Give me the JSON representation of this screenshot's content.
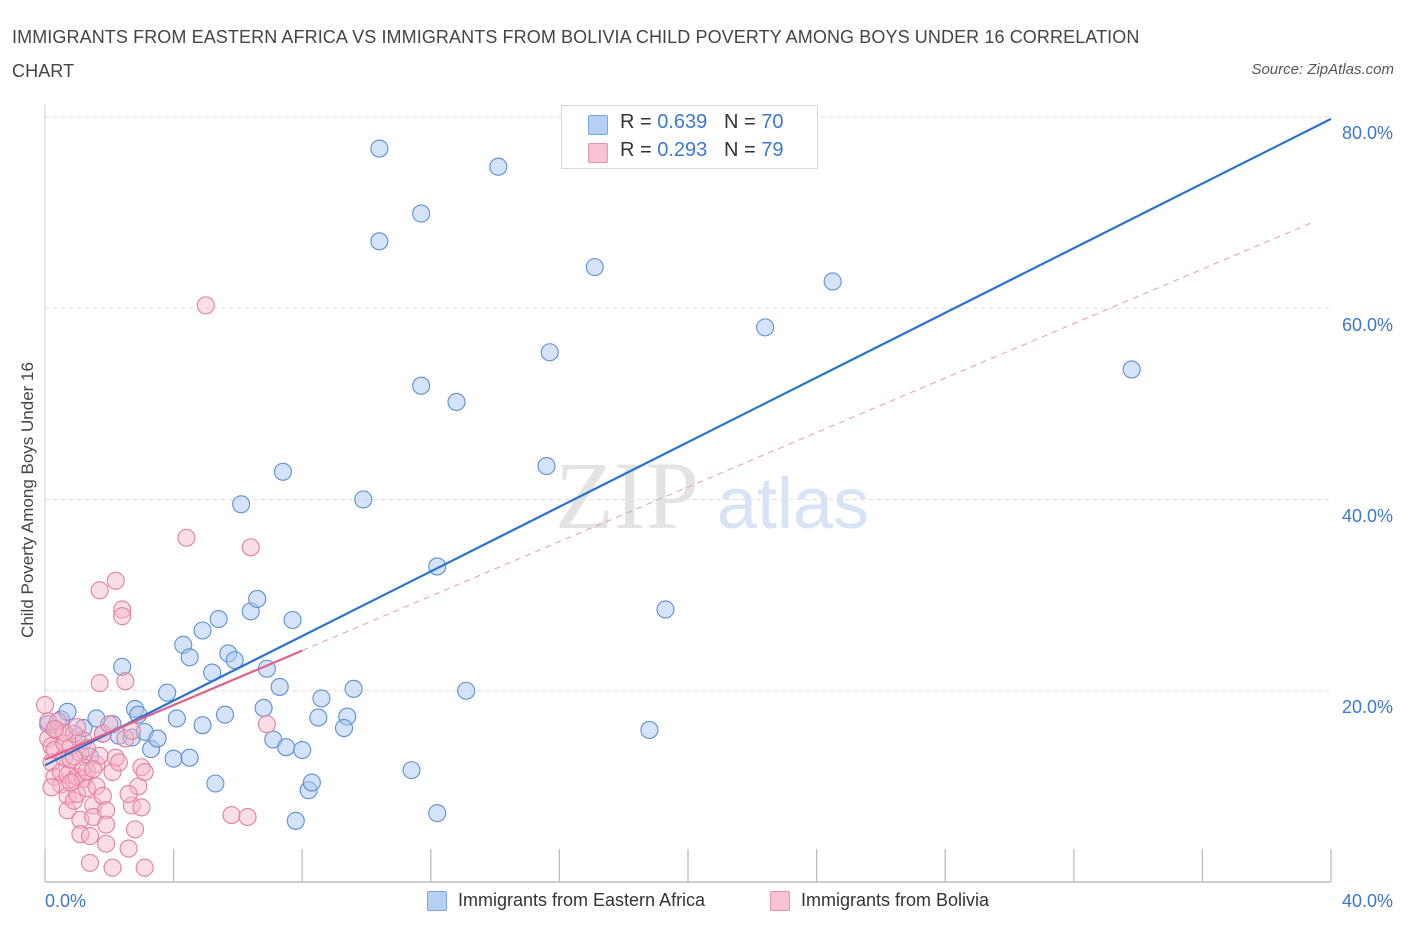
{
  "header": {
    "title": "IMMIGRANTS FROM EASTERN AFRICA VS IMMIGRANTS FROM BOLIVIA CHILD POVERTY AMONG BOYS UNDER 16 CORRELATION CHART",
    "source": "Source: ZipAtlas.com"
  },
  "watermark": {
    "zip": "ZIP",
    "atlas": "atlas"
  },
  "stats": {
    "r_label": "R = ",
    "n_label": "N = ",
    "series": [
      {
        "r": "0.639",
        "n": "70"
      },
      {
        "r": "0.293",
        "n": "79"
      }
    ]
  },
  "colors": {
    "blue_fill": "#a9c8f0",
    "blue_stroke": "#5b8fd6",
    "blue_line": "#2a72d0",
    "pink_fill": "#f4b6c8",
    "pink_stroke": "#e57fa0",
    "pink_line": "#e0608a",
    "axis_text": "#3b78d4",
    "grid": "#dcdcdc"
  },
  "chart_data": {
    "type": "scatter",
    "title": "IMMIGRANTS FROM EASTERN AFRICA VS IMMIGRANTS FROM BOLIVIA CHILD POVERTY AMONG BOYS UNDER 16 CORRELATION CHART",
    "xlabel": "",
    "ylabel": "Child Poverty Among Boys Under 16",
    "xlim": [
      0,
      40
    ],
    "ylim": [
      0,
      80
    ],
    "x_tick_labels": [
      "0.0%",
      "40.0%"
    ],
    "y_tick_labels": [
      "20.0%",
      "40.0%",
      "60.0%",
      "80.0%"
    ],
    "y_ticks": [
      20,
      40,
      60,
      80
    ],
    "grid": true,
    "legend_position": "bottom-center",
    "series": [
      {
        "name": "Immigrants from Eastern Africa",
        "r": 0.639,
        "n": 70,
        "trend": {
          "x": [
            0,
            40
          ],
          "y": [
            12.2,
            79.8
          ]
        },
        "points": [
          [
            0.1,
            16.5
          ],
          [
            0.3,
            16.0
          ],
          [
            0.5,
            17.0
          ],
          [
            0.7,
            17.8
          ],
          [
            1.0,
            15.2
          ],
          [
            1.2,
            16.1
          ],
          [
            1.4,
            13.1
          ],
          [
            1.6,
            17.1
          ],
          [
            1.8,
            15.5
          ],
          [
            2.1,
            16.5
          ],
          [
            2.3,
            15.3
          ],
          [
            2.4,
            22.5
          ],
          [
            2.7,
            15.1
          ],
          [
            2.8,
            18.1
          ],
          [
            2.9,
            17.5
          ],
          [
            3.1,
            15.7
          ],
          [
            3.3,
            13.9
          ],
          [
            3.5,
            15.0
          ],
          [
            3.8,
            19.8
          ],
          [
            4.0,
            12.9
          ],
          [
            4.1,
            17.1
          ],
          [
            4.3,
            24.8
          ],
          [
            4.5,
            23.5
          ],
          [
            4.5,
            13.0
          ],
          [
            4.9,
            16.4
          ],
          [
            4.9,
            26.3
          ],
          [
            5.2,
            21.9
          ],
          [
            5.3,
            10.3
          ],
          [
            5.4,
            27.5
          ],
          [
            5.6,
            17.5
          ],
          [
            5.7,
            23.9
          ],
          [
            5.9,
            23.2
          ],
          [
            6.1,
            39.5
          ],
          [
            6.4,
            28.3
          ],
          [
            6.6,
            29.6
          ],
          [
            6.8,
            18.2
          ],
          [
            6.9,
            22.3
          ],
          [
            7.1,
            14.9
          ],
          [
            7.3,
            20.4
          ],
          [
            7.4,
            42.9
          ],
          [
            7.5,
            14.1
          ],
          [
            7.7,
            27.4
          ],
          [
            7.8,
            6.4
          ],
          [
            8.0,
            13.8
          ],
          [
            8.2,
            9.6
          ],
          [
            8.3,
            10.4
          ],
          [
            8.5,
            17.2
          ],
          [
            8.6,
            19.2
          ],
          [
            9.4,
            17.3
          ],
          [
            9.3,
            16.1
          ],
          [
            9.6,
            20.2
          ],
          [
            9.9,
            40.0
          ],
          [
            10.4,
            76.7
          ],
          [
            10.4,
            67.0
          ],
          [
            11.4,
            11.7
          ],
          [
            11.7,
            51.9
          ],
          [
            11.7,
            69.9
          ],
          [
            12.2,
            7.2
          ],
          [
            12.2,
            33.0
          ],
          [
            12.8,
            50.2
          ],
          [
            13.1,
            20.0
          ],
          [
            14.1,
            74.8
          ],
          [
            15.6,
            43.5
          ],
          [
            15.7,
            55.4
          ],
          [
            17.1,
            64.3
          ],
          [
            18.8,
            15.9
          ],
          [
            19.3,
            28.5
          ],
          [
            22.4,
            58.0
          ],
          [
            24.5,
            62.8
          ],
          [
            33.8,
            53.6
          ]
        ]
      },
      {
        "name": "Immigrants from Bolivia",
        "r": 0.293,
        "n": 79,
        "trend": {
          "x": [
            0,
            8.0
          ],
          "y": [
            12.8,
            24.2
          ]
        },
        "points": [
          [
            0.0,
            18.5
          ],
          [
            0.1,
            16.8
          ],
          [
            0.1,
            15.0
          ],
          [
            0.2,
            14.2
          ],
          [
            0.2,
            12.5
          ],
          [
            0.3,
            13.8
          ],
          [
            0.3,
            11.0
          ],
          [
            0.4,
            15.8
          ],
          [
            0.4,
            16.8
          ],
          [
            0.5,
            10.2
          ],
          [
            0.5,
            11.5
          ],
          [
            0.6,
            13.0
          ],
          [
            0.6,
            14.5
          ],
          [
            0.7,
            9.0
          ],
          [
            0.7,
            11.2
          ],
          [
            0.7,
            7.5
          ],
          [
            0.8,
            12.8
          ],
          [
            0.8,
            14.2
          ],
          [
            0.9,
            10.6
          ],
          [
            0.9,
            8.5
          ],
          [
            0.9,
            15.5
          ],
          [
            1.0,
            11.0
          ],
          [
            1.0,
            9.2
          ],
          [
            1.1,
            13.5
          ],
          [
            1.1,
            6.5
          ],
          [
            1.1,
            5.0
          ],
          [
            1.2,
            10.8
          ],
          [
            1.2,
            12.0
          ],
          [
            1.2,
            14.8
          ],
          [
            1.3,
            9.8
          ],
          [
            1.3,
            11.6
          ],
          [
            1.4,
            4.8
          ],
          [
            1.4,
            2.0
          ],
          [
            1.5,
            8.0
          ],
          [
            1.5,
            6.8
          ],
          [
            1.6,
            12.3
          ],
          [
            1.6,
            10.0
          ],
          [
            1.7,
            20.8
          ],
          [
            1.7,
            30.5
          ],
          [
            1.7,
            13.2
          ],
          [
            1.8,
            15.5
          ],
          [
            1.8,
            9.0
          ],
          [
            1.9,
            7.5
          ],
          [
            1.9,
            4.0
          ],
          [
            2.0,
            16.5
          ],
          [
            2.1,
            11.5
          ],
          [
            2.1,
            1.5
          ],
          [
            2.2,
            31.5
          ],
          [
            2.2,
            13.0
          ],
          [
            2.4,
            28.5
          ],
          [
            2.4,
            27.8
          ],
          [
            2.5,
            21.0
          ],
          [
            2.5,
            15.0
          ],
          [
            2.6,
            3.5
          ],
          [
            2.7,
            8.0
          ],
          [
            2.7,
            15.8
          ],
          [
            2.8,
            5.5
          ],
          [
            2.9,
            10.0
          ],
          [
            3.0,
            7.8
          ],
          [
            3.0,
            12.0
          ],
          [
            3.1,
            1.5
          ],
          [
            3.1,
            11.5
          ],
          [
            4.4,
            36.0
          ],
          [
            5.0,
            60.3
          ],
          [
            5.8,
            7.0
          ],
          [
            6.3,
            6.8
          ],
          [
            6.4,
            35.0
          ],
          [
            6.9,
            16.5
          ],
          [
            0.6,
            15.6
          ],
          [
            0.9,
            13.1
          ],
          [
            1.0,
            16.2
          ],
          [
            1.3,
            14.0
          ],
          [
            1.5,
            11.8
          ],
          [
            1.9,
            6.0
          ],
          [
            2.3,
            12.5
          ],
          [
            2.6,
            9.2
          ],
          [
            0.2,
            9.9
          ],
          [
            0.3,
            16.0
          ],
          [
            0.8,
            10.4
          ]
        ]
      }
    ]
  },
  "legend": {
    "items": [
      {
        "label": "Immigrants from Eastern Africa"
      },
      {
        "label": "Immigrants from Bolivia"
      }
    ]
  }
}
